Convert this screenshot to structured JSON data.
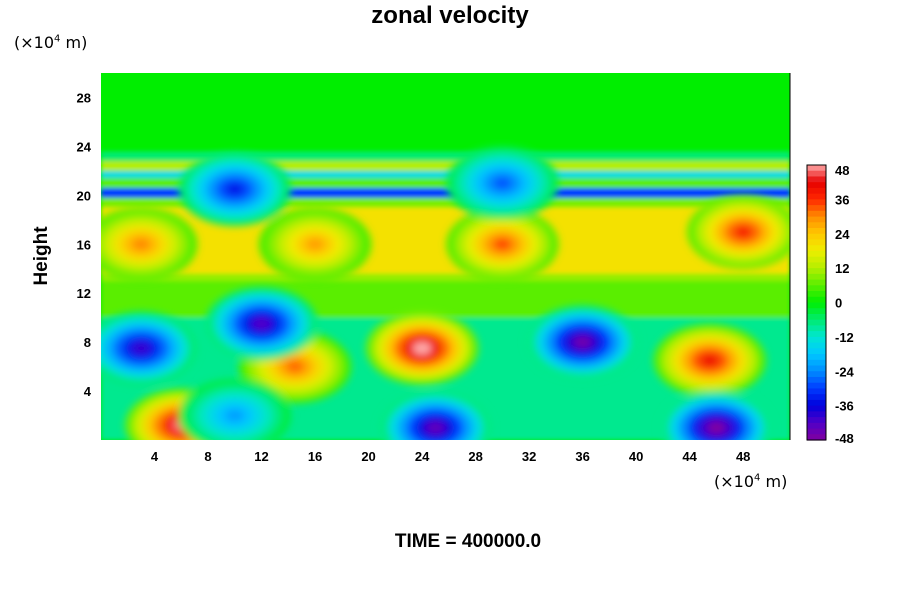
{
  "chart_data": {
    "type": "heatmap",
    "title": "zonal velocity",
    "ylabel": "Height",
    "xlabel": "",
    "x_unit": {
      "prefix": "(×10",
      "exp": "4",
      "suffix": " m)"
    },
    "y_unit": {
      "prefix": "(×10",
      "exp": "4",
      "suffix": " m)"
    },
    "x_ticks": [
      "4",
      "8",
      "12",
      "16",
      "20",
      "24",
      "28",
      "32",
      "36",
      "40",
      "44",
      "48"
    ],
    "y_ticks": [
      "4",
      "8",
      "12",
      "16",
      "20",
      "24",
      "28"
    ],
    "xlim": [
      0,
      51.5
    ],
    "ylim": [
      0,
      30
    ],
    "colorbar": {
      "ticks": [
        "48",
        "36",
        "24",
        "12",
        "0",
        "-12",
        "-24",
        "-36",
        "-48"
      ],
      "range": [
        -48,
        48
      ]
    },
    "features": [
      {
        "x": 24,
        "y": 7.5,
        "value": 48
      },
      {
        "x": 45.5,
        "y": 6.5,
        "value": 40
      },
      {
        "x": 6,
        "y": 1.2,
        "value": 46
      },
      {
        "x": 14.5,
        "y": 6,
        "value": 32
      },
      {
        "x": 3,
        "y": 7.5,
        "value": -40
      },
      {
        "x": 12,
        "y": 9.5,
        "value": -42
      },
      {
        "x": 36,
        "y": 8,
        "value": -46
      },
      {
        "x": 46,
        "y": 1,
        "value": -48
      },
      {
        "x": 25,
        "y": 1,
        "value": -44
      },
      {
        "x": 10,
        "y": 2,
        "value": -22
      },
      {
        "x": 30,
        "y": 16,
        "value": 34
      },
      {
        "x": 16,
        "y": 16,
        "value": 28
      },
      {
        "x": 48,
        "y": 17,
        "value": 38
      },
      {
        "x": 3,
        "y": 16,
        "value": 30
      },
      {
        "x": 10,
        "y": 20.5,
        "value": -34
      },
      {
        "x": 30,
        "y": 21,
        "value": -28
      }
    ],
    "time": "TIME = 400000.0"
  }
}
